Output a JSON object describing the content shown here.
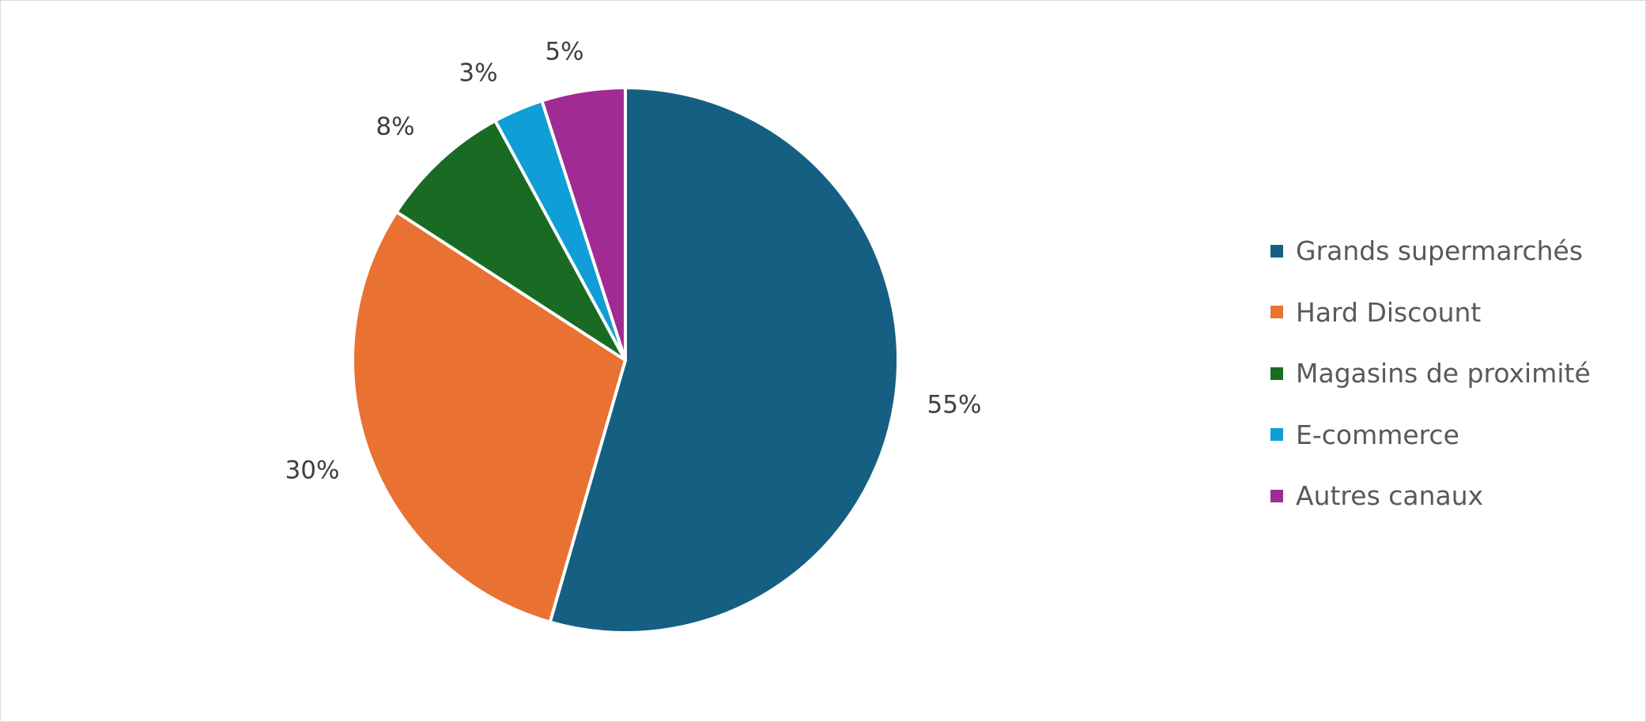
{
  "chart_data": {
    "type": "pie",
    "start_angle": "top, clockwise",
    "categories": [
      "Grands supermarchés",
      "Hard Discount",
      "Magasins de proximité",
      "E-commerce",
      "Autres canaux"
    ],
    "values": [
      55,
      30,
      8,
      3,
      5
    ],
    "data_labels": [
      "55%",
      "30%",
      "8%",
      "3%",
      "5%"
    ],
    "colors": [
      "#156082",
      "#E97132",
      "#196B24",
      "#0F9ED5",
      "#A02B93"
    ],
    "legend_position": "right"
  }
}
